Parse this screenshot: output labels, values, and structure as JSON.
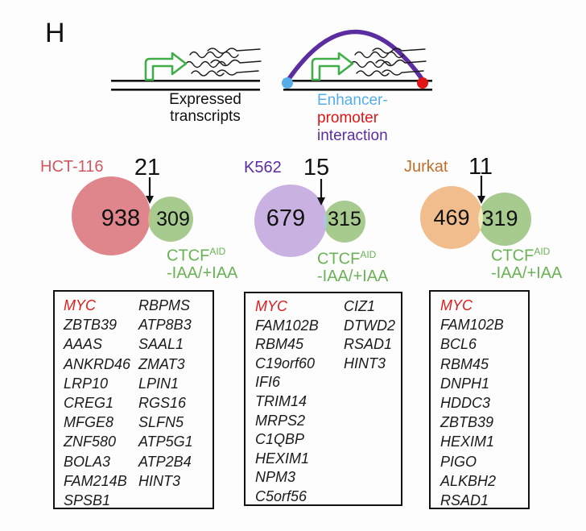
{
  "panel": {
    "label": "H"
  },
  "schematics": {
    "expressed": {
      "caption_line1": "Expressed",
      "caption_line2": "transcripts"
    },
    "enhancer_promoter": {
      "caption_line1": "Enhancer-",
      "caption_line2": "promoter",
      "caption_line3": "interaction",
      "enhancer_color": "#55aee8",
      "promoter_color": "#e01616",
      "interaction_color": "#5b2da0"
    }
  },
  "ctcf_label": {
    "base": "CTCF",
    "sup": "AID",
    "line2": "-IAA/+IAA",
    "color": "#6ab355"
  },
  "highlight_gene_color": "#e01b1b",
  "chart_data": [
    {
      "type": "venn",
      "cell_line": "HCT-116",
      "cell_line_color": "#d05862",
      "left_set": {
        "label": "HCT-116",
        "value": 938,
        "color": "#df868c"
      },
      "right_set": {
        "label": "CTCF AID -IAA/+IAA",
        "value": 309,
        "color": "#a7ca8f"
      },
      "overlap": {
        "value": 21,
        "color": "#d9b287"
      },
      "overlap_genes": {
        "col1": [
          "MYC",
          "ZBTB39",
          "AAAS",
          "ANKRD46",
          "LRP10",
          "CREG1",
          "MFGE8",
          "ZNF580",
          "BOLA3",
          "FAM214B",
          "SPSB1"
        ],
        "col2": [
          "RBPMS",
          "ATP8B3",
          "SAAL1",
          "ZMAT3",
          "LPIN1",
          "RGS16",
          "SLFN5",
          "ATP5G1",
          "ATP2B4",
          "HINT3"
        ]
      }
    },
    {
      "type": "venn",
      "cell_line": "K562",
      "cell_line_color": "#5b2da0",
      "left_set": {
        "label": "K562",
        "value": 679,
        "color": "#c9b2e2"
      },
      "right_set": {
        "label": "CTCF AID -IAA/+IAA",
        "value": 315,
        "color": "#a7ca8f"
      },
      "overlap": {
        "value": 15,
        "color": "#a9c8e9"
      },
      "overlap_genes": {
        "col1": [
          "MYC",
          "FAM102B",
          "RBM45",
          "C19orf60",
          "IFI6",
          "TRIM14",
          "MRPS2",
          "C1QBP",
          "HEXIM1",
          "NPM3",
          "C5orf56"
        ],
        "col2": [
          "CIZ1",
          "DTWD2",
          "RSAD1",
          "HINT3"
        ]
      }
    },
    {
      "type": "venn",
      "cell_line": "Jurkat",
      "cell_line_color": "#bf6d28",
      "left_set": {
        "label": "Jurkat",
        "value": 469,
        "color": "#f1bd8d"
      },
      "right_set": {
        "label": "CTCF AID -IAA/+IAA",
        "value": 319,
        "color": "#a7ca8f"
      },
      "overlap": {
        "value": 11,
        "color": "#efeabb"
      },
      "overlap_genes": {
        "col1": [
          "MYC",
          "FAM102B",
          "BCL6",
          "RBM45",
          "DNPH1",
          "HDDC3",
          "ZBTB39",
          "HEXIM1",
          "PIGO",
          "ALKBH2",
          "RSAD1"
        ]
      }
    }
  ]
}
